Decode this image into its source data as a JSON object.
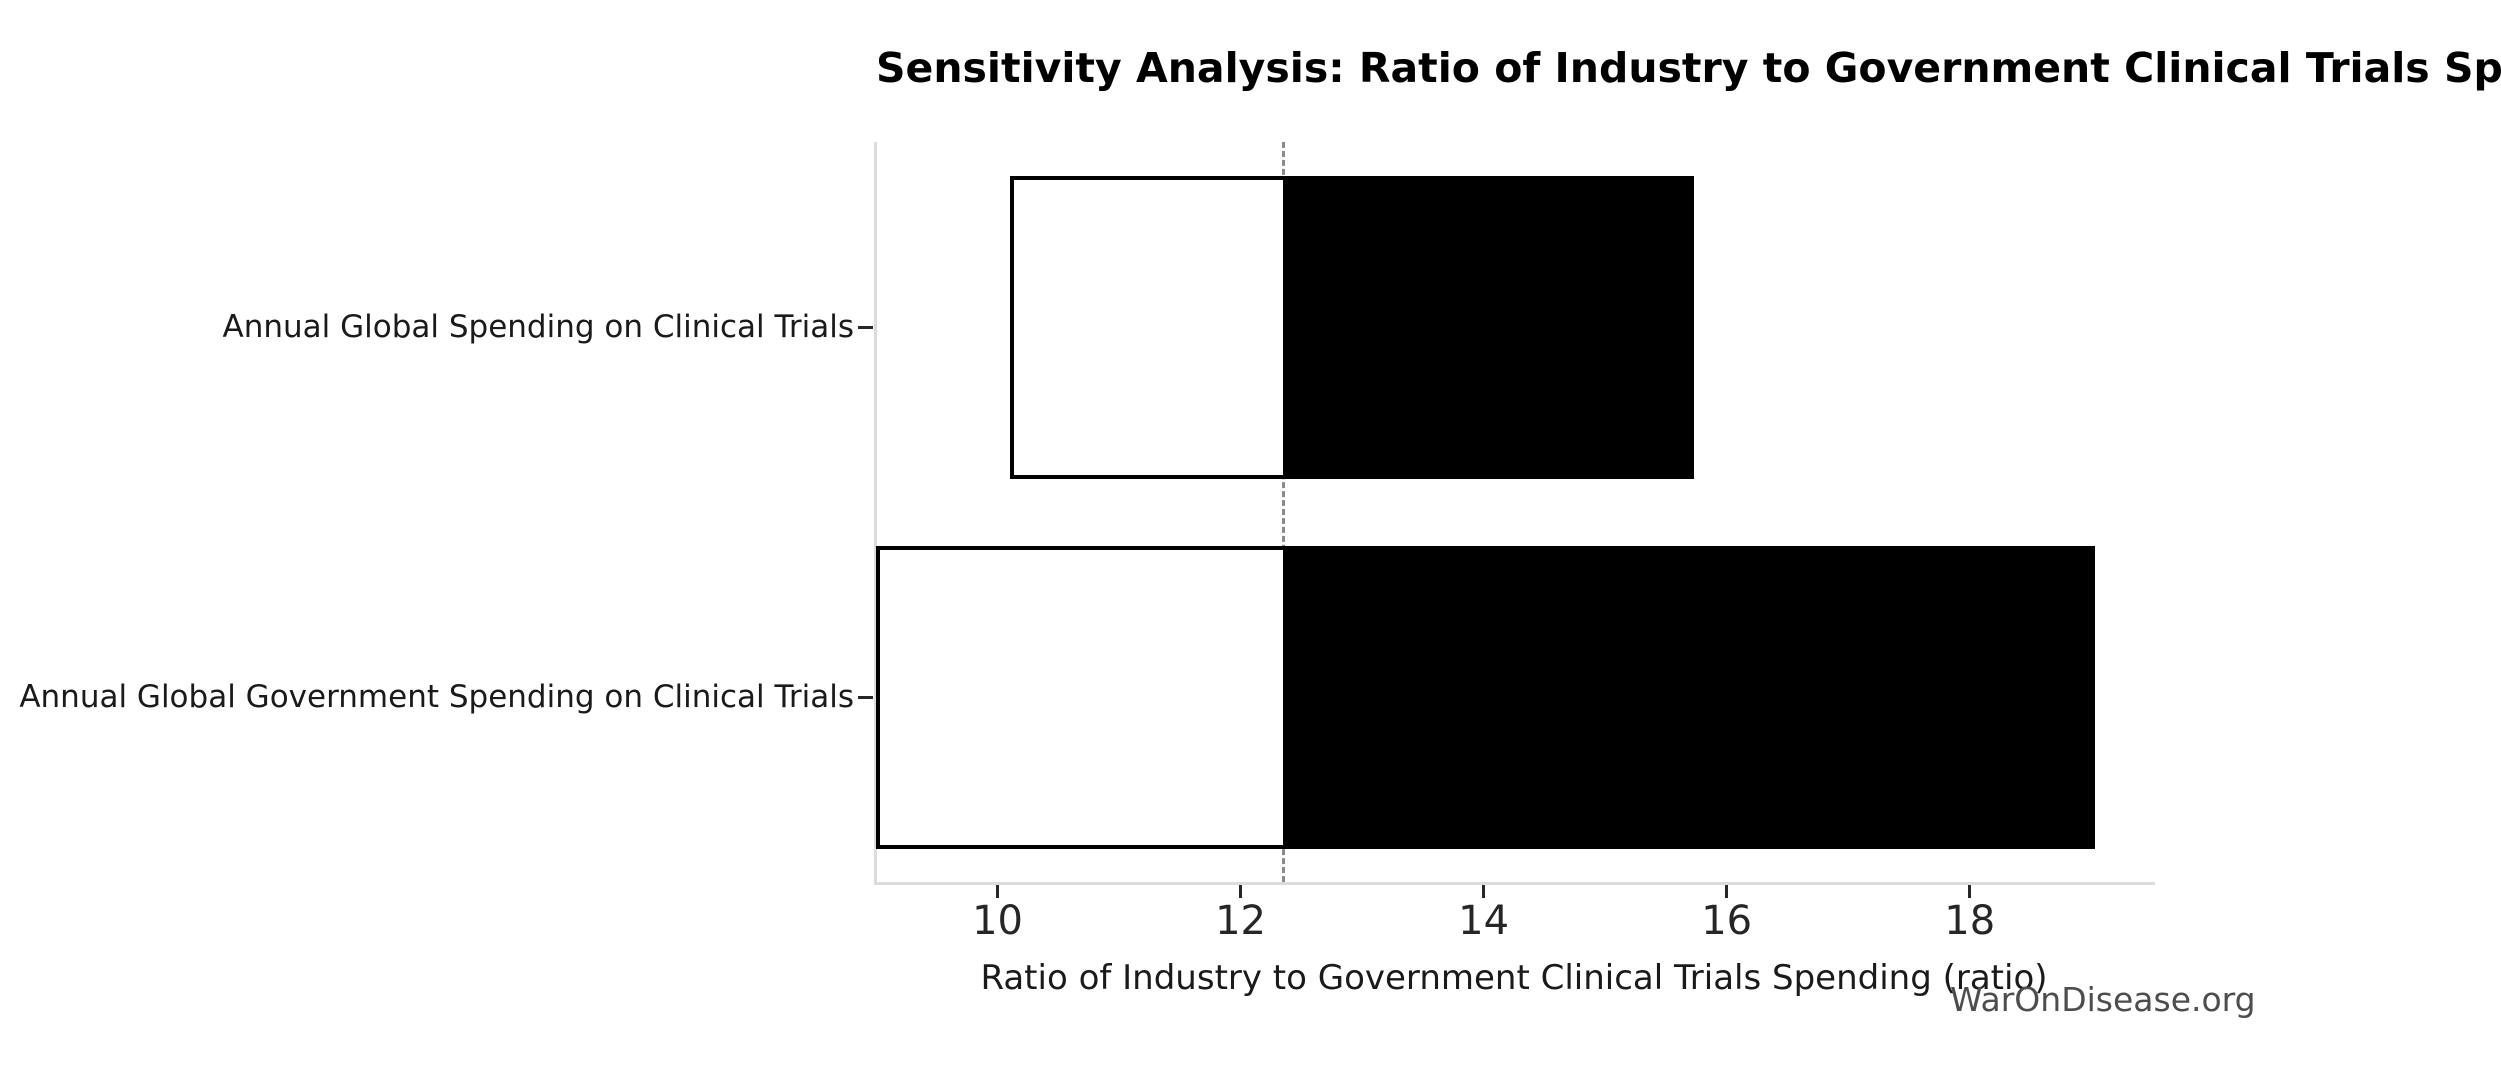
{
  "title": "Sensitivity Analysis: Ratio of Industry to Government Clinical Trials Spending",
  "watermark": "WarOnDisease.org",
  "colors": {
    "bar_low_fill": "#ffffff",
    "bar_high_fill": "#000000",
    "bar_edge": "#000000",
    "baseline_line": "#8a8a8a",
    "spine": "#dcdcdc",
    "tick": "#262626",
    "title_text": "#000000",
    "watermark_text": "#4d4d4d"
  },
  "chart_data": {
    "type": "bar",
    "subtype": "tornado-sensitivity",
    "orientation": "horizontal",
    "title": "Sensitivity Analysis: Ratio of Industry to Government Clinical Trials Spending",
    "xlabel": "Ratio of Industry to Government Clinical Trials Spending (ratio)",
    "ylabel": "",
    "categories": [
      "Annual Global Spending on Clinical Trials",
      "Annual Global Government Spending on Clinical Trials"
    ],
    "baseline": 12.35,
    "bars": [
      {
        "label": "Annual Global Spending on Clinical Trials",
        "low": 10.1,
        "high": 15.7
      },
      {
        "label": "Annual Global Government Spending on Clinical Trials",
        "low": 9.0,
        "high": 19.0
      }
    ],
    "xlim": [
      9.0,
      19.5
    ],
    "xticks": [
      10,
      12,
      14,
      16,
      18
    ],
    "grid": false,
    "legend": "none",
    "baseline_style": "dashed vertical gray line at baseline value",
    "segment_left_of_baseline": "white fill, black edge",
    "segment_right_of_baseline": "black fill"
  }
}
